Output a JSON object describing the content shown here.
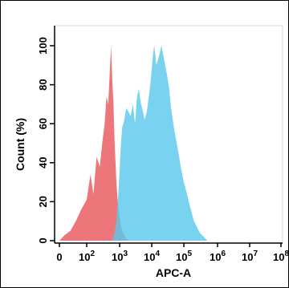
{
  "chart_data": {
    "type": "area",
    "xlabel": "APC-A",
    "ylabel": "Count (%)",
    "x_scale": "biexponential",
    "xlim": [
      0,
      100000000
    ],
    "ylim": [
      0,
      100
    ],
    "grid": false,
    "x_ticks": [
      {
        "value": 0,
        "label": "0",
        "sup": ""
      },
      {
        "value": 100,
        "label": "10",
        "sup": "2"
      },
      {
        "value": 1000,
        "label": "10",
        "sup": "3"
      },
      {
        "value": 10000,
        "label": "10",
        "sup": "4"
      },
      {
        "value": 100000,
        "label": "10",
        "sup": "5"
      },
      {
        "value": 1000000,
        "label": "10",
        "sup": "6"
      },
      {
        "value": 10000000,
        "label": "10",
        "sup": "7"
      },
      {
        "value": 100000000,
        "label": "10",
        "sup": "8"
      }
    ],
    "y_ticks": [
      0,
      20,
      40,
      60,
      80,
      100
    ],
    "series": [
      {
        "color": "#ec6f73",
        "x": [
          0,
          20,
          40,
          60,
          80,
          100,
          130,
          160,
          200,
          250,
          300,
          350,
          400,
          450,
          500,
          550,
          600,
          650,
          700,
          750,
          800,
          900,
          1000,
          1100,
          1200,
          1400,
          1600,
          1900
        ],
        "y": [
          0,
          3,
          5,
          10,
          16,
          21,
          34,
          24,
          43,
          38,
          51,
          60,
          74,
          70,
          86,
          100,
          82,
          71,
          52,
          40,
          30,
          18,
          12,
          8,
          5,
          3,
          1,
          0
        ]
      },
      {
        "color": "#5bc8ec",
        "x": [
          600,
          700,
          800,
          900,
          1000,
          1100,
          1200,
          1400,
          1600,
          1900,
          2200,
          2600,
          3000,
          3500,
          4000,
          4500,
          5000,
          6000,
          7000,
          8000,
          9000,
          10000,
          11000,
          12000,
          14000,
          17000,
          20000,
          25000,
          30000,
          35000,
          40000,
          50000,
          60000,
          70000,
          80000,
          100000,
          120000,
          150000,
          200000,
          300000,
          500000
        ],
        "y": [
          0,
          4,
          10,
          22,
          36,
          50,
          58,
          62,
          68,
          66,
          64,
          70,
          60,
          74,
          78,
          71,
          68,
          62,
          66,
          73,
          80,
          88,
          96,
          100,
          90,
          95,
          100,
          92,
          85,
          78,
          68,
          57,
          50,
          44,
          38,
          30,
          25,
          18,
          10,
          4,
          0
        ]
      }
    ]
  }
}
